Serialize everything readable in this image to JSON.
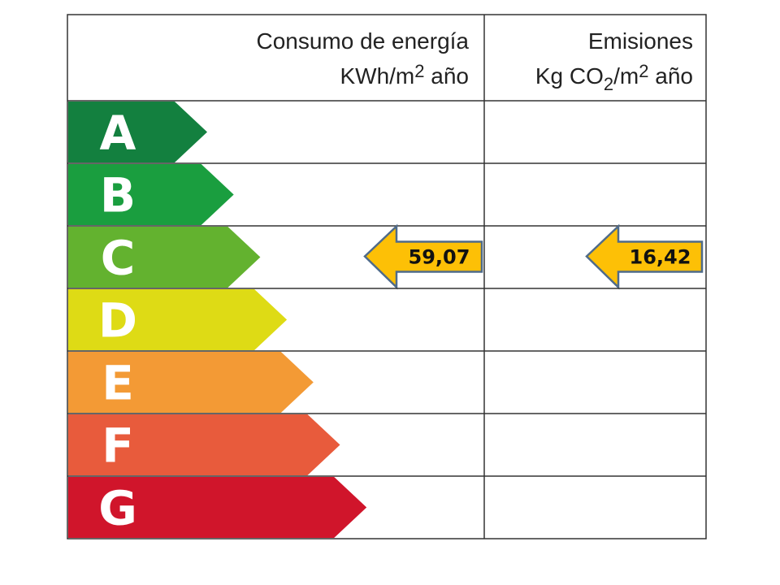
{
  "header": {
    "energy": {
      "line1": "Consumo de energía",
      "line2": [
        "KWh/m",
        "2",
        " año"
      ]
    },
    "emissions": {
      "line1": "Emisiones",
      "line2": [
        "Kg CO",
        "2",
        "/m",
        "2",
        " año"
      ]
    }
  },
  "rows": [
    {
      "letter": "A",
      "color": "#13803f"
    },
    {
      "letter": "B",
      "color": "#1a9e3f"
    },
    {
      "letter": "C",
      "color": "#63b22f",
      "energy": "59,07",
      "emissions": "16,42"
    },
    {
      "letter": "D",
      "color": "#dedb15"
    },
    {
      "letter": "E",
      "color": "#f39a35"
    },
    {
      "letter": "F",
      "color": "#e85b3c"
    },
    {
      "letter": "G",
      "color": "#d0152b"
    }
  ]
}
